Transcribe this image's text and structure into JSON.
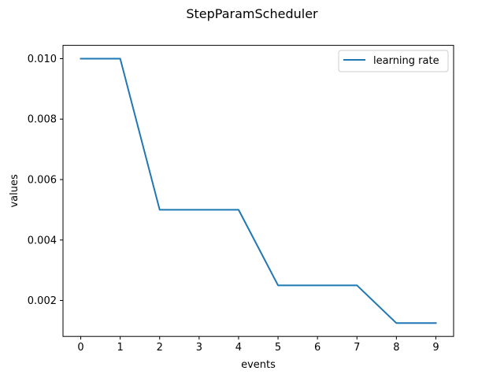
{
  "chart_data": {
    "type": "line",
    "title": "StepParamScheduler",
    "xlabel": "events",
    "ylabel": "values",
    "x": [
      0,
      1,
      2,
      3,
      4,
      5,
      6,
      7,
      8,
      9
    ],
    "series": [
      {
        "name": "learning rate",
        "color": "#1f77b4",
        "values": [
          0.01,
          0.01,
          0.005,
          0.005,
          0.005,
          0.0025,
          0.0025,
          0.0025,
          0.00125,
          0.00125
        ]
      }
    ],
    "xticks": [
      0,
      1,
      2,
      3,
      4,
      5,
      6,
      7,
      8,
      9
    ],
    "xtick_labels": [
      "0",
      "1",
      "2",
      "3",
      "4",
      "5",
      "6",
      "7",
      "8",
      "9"
    ],
    "yticks": [
      0.002,
      0.004,
      0.006,
      0.008,
      0.01
    ],
    "ytick_labels": [
      "0.002",
      "0.004",
      "0.006",
      "0.008",
      "0.010"
    ],
    "xlim": [
      -0.45,
      9.45
    ],
    "ylim": [
      0.00081,
      0.01044
    ],
    "grid": false,
    "legend": "upper right"
  }
}
